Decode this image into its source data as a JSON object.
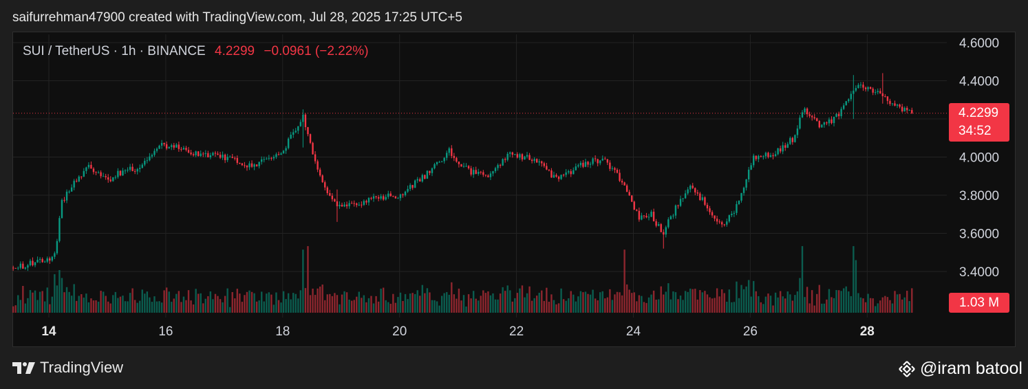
{
  "header": {
    "text": "saifurrehman47900 created with TradingView.com, Jul 28, 2025 17:25 UTC+5"
  },
  "legend": {
    "symbol": "SUI / TetherUS · 1h · BINANCE",
    "last": "4.2299",
    "change": "−0.0961 (−2.22%)"
  },
  "price_tag": {
    "price": "4.2299",
    "countdown": "34:52"
  },
  "volume_tag": {
    "value": "1.03 M"
  },
  "footer": {
    "brand": "TradingView",
    "watermark": "@iram batool"
  },
  "colors": {
    "up": "#089981",
    "down": "#f23645",
    "background": "#0f0f0f",
    "grid": "#232323",
    "text": "#d1d4dc"
  },
  "chart_data": {
    "type": "candlestick",
    "title": "SUI / TetherUS · 1h · BINANCE",
    "x_ticks": [
      {
        "label": "14",
        "bold": true,
        "x": 0
      },
      {
        "label": "16",
        "bold": false,
        "x": 2
      },
      {
        "label": "18",
        "bold": false,
        "x": 4
      },
      {
        "label": "20",
        "bold": false,
        "x": 6
      },
      {
        "label": "22",
        "bold": false,
        "x": 8
      },
      {
        "label": "24",
        "bold": false,
        "x": 10
      },
      {
        "label": "26",
        "bold": false,
        "x": 12
      },
      {
        "label": "28",
        "bold": true,
        "x": 14
      }
    ],
    "x_range": [
      -0.61,
      14.75
    ],
    "y_ticks": [
      "4.6000",
      "4.4000",
      "4.2000",
      "4.0000",
      "3.8000",
      "3.6000",
      "3.4000"
    ],
    "ylim": [
      3.24,
      4.66
    ],
    "last_price": 4.2299,
    "volume_scale_max": 1.0,
    "anchors_close": [
      [
        -0.61,
        3.42
      ],
      [
        -0.2,
        3.45
      ],
      [
        0.1,
        3.48
      ],
      [
        0.22,
        3.76
      ],
      [
        0.45,
        3.88
      ],
      [
        0.7,
        3.95
      ],
      [
        1.0,
        3.88
      ],
      [
        1.3,
        3.93
      ],
      [
        1.6,
        3.95
      ],
      [
        1.9,
        4.07
      ],
      [
        2.2,
        4.05
      ],
      [
        2.5,
        4.02
      ],
      [
        3.0,
        4.0
      ],
      [
        3.5,
        3.95
      ],
      [
        4.0,
        4.03
      ],
      [
        4.35,
        4.22
      ],
      [
        4.45,
        4.08
      ],
      [
        4.75,
        3.82
      ],
      [
        5.0,
        3.73
      ],
      [
        5.5,
        3.78
      ],
      [
        6.0,
        3.8
      ],
      [
        6.5,
        3.92
      ],
      [
        6.85,
        4.03
      ],
      [
        7.2,
        3.92
      ],
      [
        7.5,
        3.9
      ],
      [
        7.9,
        4.02
      ],
      [
        8.35,
        3.98
      ],
      [
        8.7,
        3.88
      ],
      [
        9.1,
        3.96
      ],
      [
        9.5,
        3.99
      ],
      [
        9.85,
        3.85
      ],
      [
        10.1,
        3.68
      ],
      [
        10.3,
        3.7
      ],
      [
        10.5,
        3.6
      ],
      [
        10.7,
        3.72
      ],
      [
        10.95,
        3.85
      ],
      [
        11.25,
        3.75
      ],
      [
        11.5,
        3.63
      ],
      [
        11.8,
        3.75
      ],
      [
        12.05,
        3.99
      ],
      [
        12.4,
        4.02
      ],
      [
        12.75,
        4.1
      ],
      [
        12.9,
        4.26
      ],
      [
        13.2,
        4.15
      ],
      [
        13.5,
        4.22
      ],
      [
        13.8,
        4.37
      ],
      [
        14.1,
        4.35
      ],
      [
        14.4,
        4.28
      ],
      [
        14.75,
        4.23
      ]
    ],
    "price_spikes": [
      {
        "x": 4.35,
        "high": 4.25,
        "low": 4.05
      },
      {
        "x": 4.95,
        "high": 3.83,
        "low": 3.66
      },
      {
        "x": 10.5,
        "high": 3.62,
        "low": 3.52
      },
      {
        "x": 13.75,
        "high": 4.43,
        "low": 4.2
      },
      {
        "x": 14.25,
        "high": 4.44,
        "low": 4.28
      }
    ],
    "volume_spikes": [
      {
        "x": 0.1,
        "v": 0.55,
        "dir": "up"
      },
      {
        "x": 4.35,
        "v": 0.9,
        "dir": "up"
      },
      {
        "x": 4.45,
        "v": 0.95,
        "dir": "down"
      },
      {
        "x": 9.85,
        "v": 0.9,
        "dir": "down"
      },
      {
        "x": 12.9,
        "v": 0.95,
        "dir": "up"
      },
      {
        "x": 13.75,
        "v": 0.95,
        "dir": "down"
      },
      {
        "x": 13.8,
        "v": 0.75,
        "dir": "up"
      }
    ]
  }
}
